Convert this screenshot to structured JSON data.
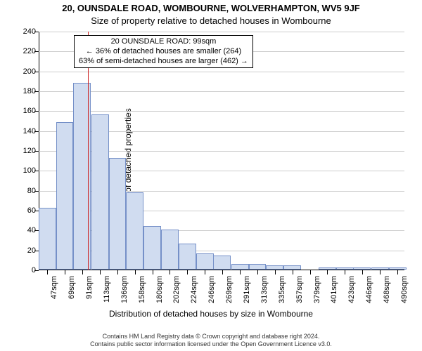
{
  "title_line1": "20, OUNSDALE ROAD, WOMBOURNE, WOLVERHAMPTON, WV5 9JF",
  "title_line2": "Size of property relative to detached houses in Wombourne",
  "ylabel": "Number of detached properties",
  "xlabel": "Distribution of detached houses by size in Wombourne",
  "footer_line1": "Contains HM Land Registry data © Crown copyright and database right 2024.",
  "footer_line2": "Contains public sector information licensed under the Open Government Licence v3.0.",
  "annotation": {
    "line1": "20 OUNSDALE ROAD: 99sqm",
    "line2": "← 36% of detached houses are smaller (264)",
    "line3": "63% of semi-detached houses are larger (462) →"
  },
  "chart": {
    "type": "histogram",
    "background_color": "#ffffff",
    "grid_color": "#cccccc",
    "axis_color": "#000000",
    "bar_fill": "#d0dcf0",
    "bar_border": "#7590c8",
    "refline_color": "#cc2222",
    "refline_x": 99,
    "title_fontsize": 13,
    "label_fontsize": 12,
    "tick_fontsize": 11,
    "annotation_fontsize": 11,
    "footer_fontsize": 9,
    "ylim": [
      0,
      240
    ],
    "ytick_step": 20,
    "xlim": [
      36,
      501
    ],
    "xtick_start": 47,
    "xtick_step": 22.25,
    "xtick_labels": [
      "47sqm",
      "69sqm",
      "91sqm",
      "113sqm",
      "136sqm",
      "158sqm",
      "180sqm",
      "202sqm",
      "224sqm",
      "246sqm",
      "269sqm",
      "291sqm",
      "313sqm",
      "335sqm",
      "357sqm",
      "379sqm",
      "401sqm",
      "423sqm",
      "446sqm",
      "468sqm",
      "490sqm"
    ],
    "bin_width": 22.25,
    "bins": [
      {
        "start": 36,
        "count": 62
      },
      {
        "start": 58,
        "count": 148
      },
      {
        "start": 80,
        "count": 188
      },
      {
        "start": 103,
        "count": 156
      },
      {
        "start": 125,
        "count": 112
      },
      {
        "start": 147,
        "count": 78
      },
      {
        "start": 169,
        "count": 44
      },
      {
        "start": 192,
        "count": 40
      },
      {
        "start": 214,
        "count": 26
      },
      {
        "start": 236,
        "count": 16
      },
      {
        "start": 258,
        "count": 14
      },
      {
        "start": 281,
        "count": 6
      },
      {
        "start": 303,
        "count": 6
      },
      {
        "start": 325,
        "count": 4
      },
      {
        "start": 347,
        "count": 4
      },
      {
        "start": 370,
        "count": 0
      },
      {
        "start": 392,
        "count": 2
      },
      {
        "start": 414,
        "count": 2
      },
      {
        "start": 436,
        "count": 2
      },
      {
        "start": 459,
        "count": 2
      },
      {
        "start": 481,
        "count": 2
      }
    ]
  }
}
